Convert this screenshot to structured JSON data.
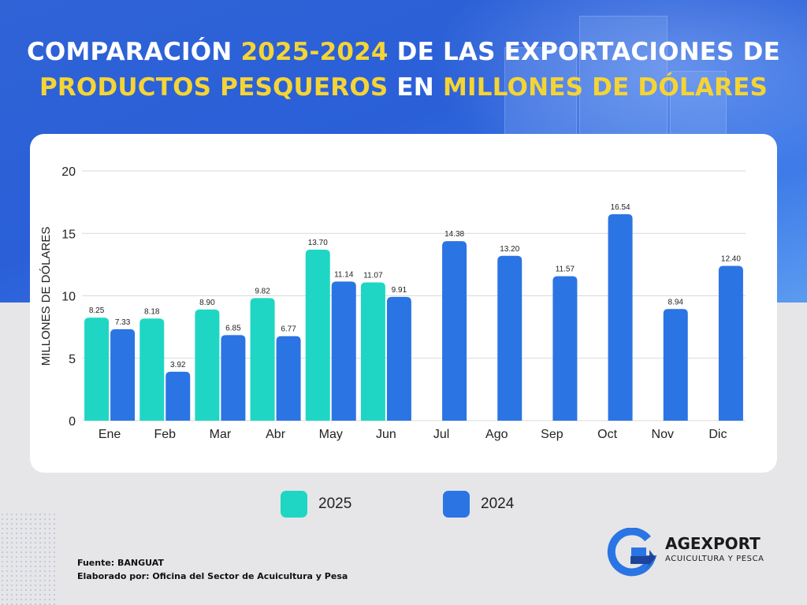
{
  "header": {
    "title_line1_a": "COMPARACIÓN ",
    "title_line1_hl": "2025-2024",
    "title_line1_b": " DE LAS EXPORTACIONES DE",
    "title_line2_hl1": "PRODUCTOS PESQUEROS",
    "title_line2_mid": " EN ",
    "title_line2_hl2": "MILLONES DE DÓLARES"
  },
  "colors": {
    "series_2025": "#1fd6c5",
    "series_2024": "#2b74e4",
    "highlight": "#f5d435",
    "grid": "#d9d9d9"
  },
  "chart_data": {
    "type": "bar",
    "title": "COMPARACIÓN 2025-2024 DE LAS EXPORTACIONES DE PRODUCTOS PESQUEROS EN MILLONES DE DÓLARES",
    "ylabel": "MILLONES DE DÓLARES",
    "xlabel": "",
    "ylim": [
      0,
      20
    ],
    "yticks": [
      "0",
      "5",
      "10",
      "15",
      "20"
    ],
    "categories": [
      "Ene",
      "Feb",
      "Mar",
      "Abr",
      "May",
      "Jun",
      "Jul",
      "Ago",
      "Sep",
      "Oct",
      "Nov",
      "Dic"
    ],
    "series": [
      {
        "name": "2025",
        "values": [
          8.25,
          8.18,
          8.9,
          9.82,
          13.7,
          11.07,
          null,
          null,
          null,
          null,
          null,
          null
        ],
        "labels": [
          "8.25",
          "8.18",
          "8.90",
          "9.82",
          "13.70",
          "11.07",
          null,
          null,
          null,
          null,
          null,
          null
        ]
      },
      {
        "name": "2024",
        "values": [
          7.33,
          3.92,
          6.85,
          6.77,
          11.14,
          9.91,
          14.38,
          13.2,
          11.57,
          16.54,
          8.94,
          12.4
        ],
        "labels": [
          "7.33",
          "3.92",
          "6.85",
          "6.77",
          "11.14",
          "9.91",
          "14.38",
          "13.20",
          "11.57",
          "16.54",
          "8.94",
          "12.40"
        ]
      }
    ],
    "grid": true,
    "legend_position": "bottom"
  },
  "legend": {
    "items": [
      {
        "label": "2025",
        "color": "#1fd6c5"
      },
      {
        "label": "2024",
        "color": "#2b74e4"
      }
    ]
  },
  "footer": {
    "source": "Fuente:  BANGUAT",
    "prepared_by": "Elaborado por:  Oficina del Sector de Acuicultura y Pesa"
  },
  "logo": {
    "name": "AGEXPORT",
    "subtitle": "ACUICULTURA Y PESCA",
    "icon": "agexport-g-arrow-icon"
  }
}
